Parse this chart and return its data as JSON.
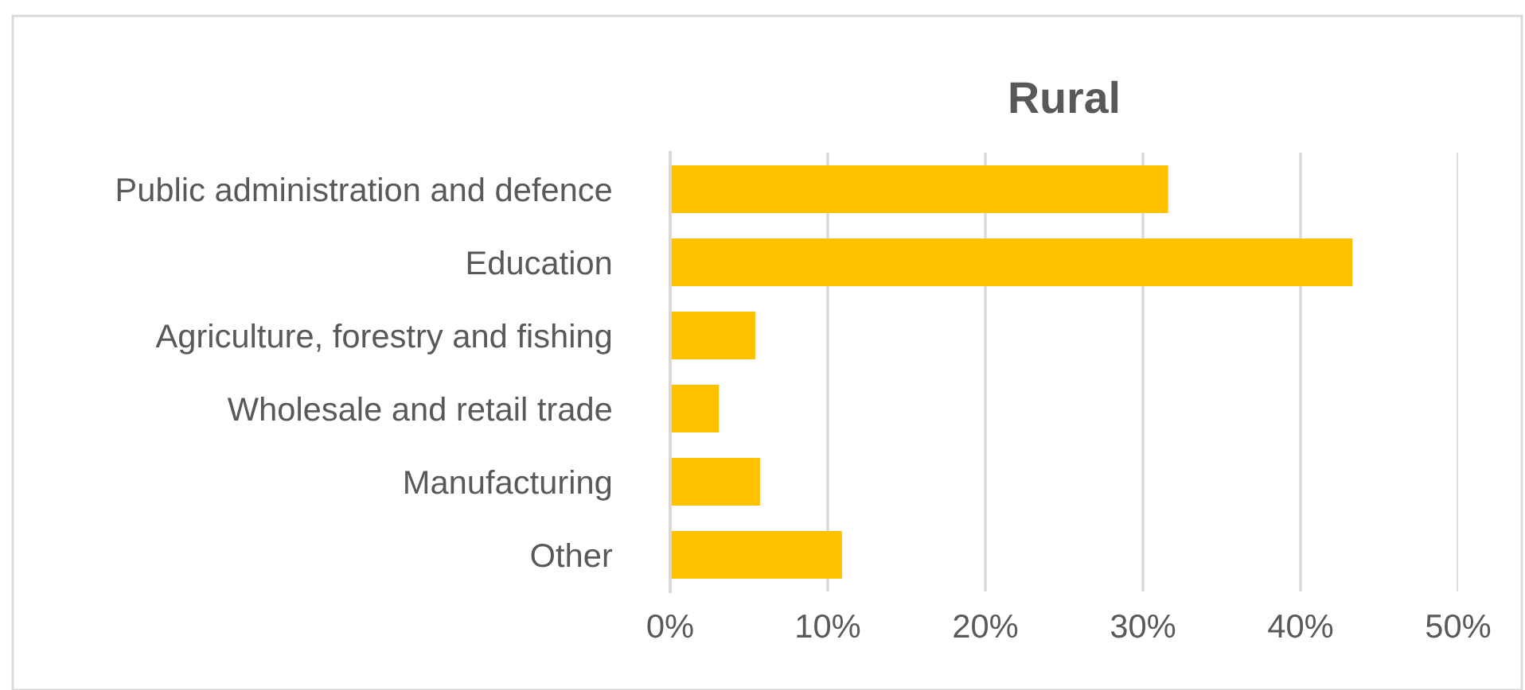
{
  "chart_data": {
    "type": "bar",
    "orientation": "horizontal",
    "title": "Rural",
    "categories": [
      "Public administration and defence",
      "Education",
      "Agriculture, forestry and fishing",
      "Wholesale and retail trade",
      "Manufacturing",
      "Other"
    ],
    "values": [
      31.6,
      43.3,
      5.4,
      3.1,
      5.7,
      10.9
    ],
    "color": "#ffc000",
    "xlim": [
      0,
      50
    ],
    "xticks": [
      {
        "value": 0,
        "label": "0%"
      },
      {
        "value": 10,
        "label": "10%"
      },
      {
        "value": 20,
        "label": "20%"
      },
      {
        "value": 30,
        "label": "30%"
      },
      {
        "value": 40,
        "label": "40%"
      },
      {
        "value": 50,
        "label": "50%"
      }
    ],
    "grid": "x"
  }
}
